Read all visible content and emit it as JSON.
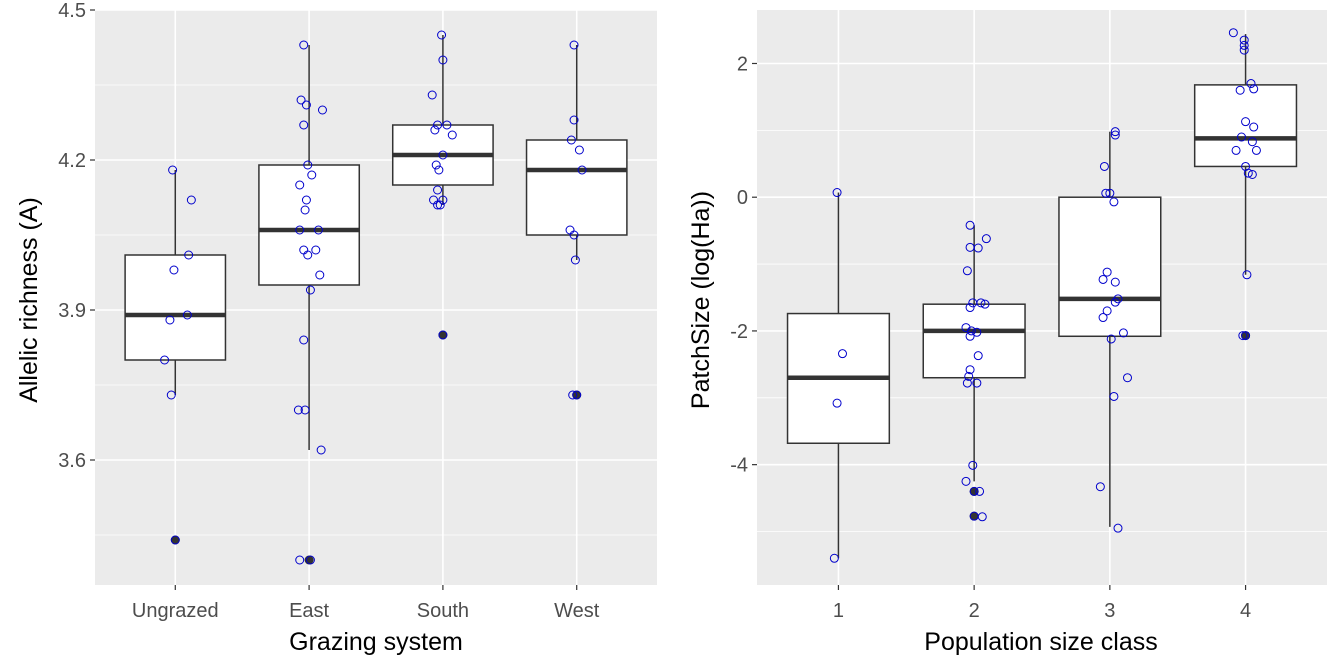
{
  "chart_data": [
    {
      "type": "boxplot",
      "xlabel": "Grazing system",
      "ylabel": "Allelic richness (A)",
      "categories": [
        "Ungrazed",
        "East",
        "South",
        "West"
      ],
      "ylim": [
        3.35,
        4.5
      ],
      "yticks": [
        3.6,
        3.9,
        4.2,
        4.5
      ],
      "grid": true,
      "boxes": [
        {
          "q1": 3.8,
          "median": 3.89,
          "q3": 4.01,
          "whisker_low": 3.73,
          "whisker_high": 4.18,
          "outliers": [
            3.44
          ]
        },
        {
          "q1": 3.95,
          "median": 4.06,
          "q3": 4.19,
          "whisker_low": 3.62,
          "whisker_high": 4.43,
          "outliers": [
            3.4
          ]
        },
        {
          "q1": 4.15,
          "median": 4.21,
          "q3": 4.27,
          "whisker_low": 4.11,
          "whisker_high": 4.45,
          "outliers": [
            3.85
          ]
        },
        {
          "q1": 4.05,
          "median": 4.18,
          "q3": 4.24,
          "whisker_low": 4.0,
          "whisker_high": 4.43,
          "outliers": [
            3.73
          ]
        }
      ],
      "points": [
        {
          "x": 0.98,
          "y": 4.18
        },
        {
          "x": 1.12,
          "y": 4.12
        },
        {
          "x": 1.1,
          "y": 4.01
        },
        {
          "x": 0.99,
          "y": 3.98
        },
        {
          "x": 1.09,
          "y": 3.89
        },
        {
          "x": 0.96,
          "y": 3.88
        },
        {
          "x": 0.92,
          "y": 3.8
        },
        {
          "x": 0.97,
          "y": 3.73
        },
        {
          "x": 1.0,
          "y": 3.44
        },
        {
          "x": 1.96,
          "y": 4.43
        },
        {
          "x": 1.94,
          "y": 4.32
        },
        {
          "x": 1.98,
          "y": 4.31
        },
        {
          "x": 2.1,
          "y": 4.3
        },
        {
          "x": 1.96,
          "y": 4.27
        },
        {
          "x": 1.99,
          "y": 4.19
        },
        {
          "x": 2.02,
          "y": 4.17
        },
        {
          "x": 1.93,
          "y": 4.15
        },
        {
          "x": 1.98,
          "y": 4.12
        },
        {
          "x": 1.97,
          "y": 4.1
        },
        {
          "x": 2.07,
          "y": 4.06
        },
        {
          "x": 1.93,
          "y": 4.06
        },
        {
          "x": 1.96,
          "y": 4.02
        },
        {
          "x": 2.05,
          "y": 4.02
        },
        {
          "x": 1.99,
          "y": 4.01
        },
        {
          "x": 2.08,
          "y": 3.97
        },
        {
          "x": 2.01,
          "y": 3.94
        },
        {
          "x": 1.96,
          "y": 3.84
        },
        {
          "x": 1.92,
          "y": 3.7
        },
        {
          "x": 1.97,
          "y": 3.7
        },
        {
          "x": 2.09,
          "y": 3.62
        },
        {
          "x": 1.93,
          "y": 3.4
        },
        {
          "x": 2.01,
          "y": 3.4
        },
        {
          "x": 2.99,
          "y": 4.45
        },
        {
          "x": 3.0,
          "y": 4.4
        },
        {
          "x": 2.92,
          "y": 4.33
        },
        {
          "x": 2.96,
          "y": 4.27
        },
        {
          "x": 3.03,
          "y": 4.27
        },
        {
          "x": 2.94,
          "y": 4.26
        },
        {
          "x": 3.07,
          "y": 4.25
        },
        {
          "x": 3.0,
          "y": 4.21
        },
        {
          "x": 2.95,
          "y": 4.19
        },
        {
          "x": 2.97,
          "y": 4.18
        },
        {
          "x": 2.96,
          "y": 4.14
        },
        {
          "x": 2.93,
          "y": 4.12
        },
        {
          "x": 2.98,
          "y": 4.11
        },
        {
          "x": 2.96,
          "y": 4.11
        },
        {
          "x": 3.0,
          "y": 4.12
        },
        {
          "x": 3.0,
          "y": 3.85
        },
        {
          "x": 3.98,
          "y": 4.43
        },
        {
          "x": 3.98,
          "y": 4.28
        },
        {
          "x": 3.96,
          "y": 4.24
        },
        {
          "x": 4.02,
          "y": 4.22
        },
        {
          "x": 4.04,
          "y": 4.18
        },
        {
          "x": 3.95,
          "y": 4.06
        },
        {
          "x": 3.98,
          "y": 4.05
        },
        {
          "x": 3.99,
          "y": 4.0
        },
        {
          "x": 3.97,
          "y": 3.73
        },
        {
          "x": 4.0,
          "y": 3.73
        }
      ]
    },
    {
      "type": "boxplot",
      "xlabel": "Population size class",
      "ylabel": "PatchSize (log(Ha))",
      "categories": [
        "1",
        "2",
        "3",
        "4"
      ],
      "ylim": [
        -5.8,
        2.8
      ],
      "yticks": [
        -4,
        -2,
        0,
        2
      ],
      "grid": true,
      "boxes": [
        {
          "q1": -3.68,
          "median": -2.7,
          "q3": -1.74,
          "whisker_low": -5.4,
          "whisker_high": 0.07,
          "outliers": []
        },
        {
          "q1": -2.7,
          "median": -2.0,
          "q3": -1.6,
          "whisker_low": -4.25,
          "whisker_high": -0.42,
          "outliers": [
            -4.4,
            -4.77
          ]
        },
        {
          "q1": -2.08,
          "median": -1.52,
          "q3": 0.0,
          "whisker_low": -4.93,
          "whisker_high": 0.98,
          "outliers": []
        },
        {
          "q1": 0.46,
          "median": 0.88,
          "q3": 1.68,
          "whisker_low": -1.16,
          "whisker_high": 2.44,
          "outliers": [
            -2.07
          ]
        }
      ],
      "points": [
        {
          "x": 0.99,
          "y": 0.07
        },
        {
          "x": 1.03,
          "y": -2.34
        },
        {
          "x": 0.99,
          "y": -3.08
        },
        {
          "x": 0.97,
          "y": -5.4
        },
        {
          "x": 1.97,
          "y": -0.42
        },
        {
          "x": 2.09,
          "y": -0.62
        },
        {
          "x": 1.97,
          "y": -0.75
        },
        {
          "x": 2.03,
          "y": -0.76
        },
        {
          "x": 1.95,
          "y": -1.1
        },
        {
          "x": 1.99,
          "y": -1.58
        },
        {
          "x": 2.05,
          "y": -1.58
        },
        {
          "x": 2.08,
          "y": -1.6
        },
        {
          "x": 1.97,
          "y": -1.65
        },
        {
          "x": 1.94,
          "y": -1.95
        },
        {
          "x": 1.98,
          "y": -2.0
        },
        {
          "x": 2.02,
          "y": -2.02
        },
        {
          "x": 1.97,
          "y": -2.08
        },
        {
          "x": 2.03,
          "y": -2.37
        },
        {
          "x": 1.97,
          "y": -2.58
        },
        {
          "x": 1.96,
          "y": -2.68
        },
        {
          "x": 2.02,
          "y": -2.78
        },
        {
          "x": 1.95,
          "y": -2.78
        },
        {
          "x": 1.99,
          "y": -4.01
        },
        {
          "x": 1.94,
          "y": -4.25
        },
        {
          "x": 2.04,
          "y": -4.4
        },
        {
          "x": 2.0,
          "y": -4.4
        },
        {
          "x": 2.06,
          "y": -4.78
        },
        {
          "x": 2.0,
          "y": -4.77
        },
        {
          "x": 3.04,
          "y": 0.98
        },
        {
          "x": 3.04,
          "y": 0.93
        },
        {
          "x": 2.96,
          "y": 0.46
        },
        {
          "x": 2.97,
          "y": 0.06
        },
        {
          "x": 3.0,
          "y": 0.06
        },
        {
          "x": 3.03,
          "y": -0.07
        },
        {
          "x": 2.98,
          "y": -1.12
        },
        {
          "x": 2.95,
          "y": -1.23
        },
        {
          "x": 3.04,
          "y": -1.27
        },
        {
          "x": 3.06,
          "y": -1.52
        },
        {
          "x": 3.04,
          "y": -1.57
        },
        {
          "x": 2.98,
          "y": -1.7
        },
        {
          "x": 2.95,
          "y": -1.8
        },
        {
          "x": 3.1,
          "y": -2.03
        },
        {
          "x": 3.01,
          "y": -2.12
        },
        {
          "x": 3.13,
          "y": -2.7
        },
        {
          "x": 3.03,
          "y": -2.98
        },
        {
          "x": 2.93,
          "y": -4.33
        },
        {
          "x": 3.06,
          "y": -4.95
        },
        {
          "x": 3.91,
          "y": 2.46
        },
        {
          "x": 3.99,
          "y": 2.35
        },
        {
          "x": 3.99,
          "y": 2.27
        },
        {
          "x": 3.99,
          "y": 2.2
        },
        {
          "x": 4.04,
          "y": 1.7
        },
        {
          "x": 4.06,
          "y": 1.62
        },
        {
          "x": 3.96,
          "y": 1.6
        },
        {
          "x": 4.0,
          "y": 1.13
        },
        {
          "x": 4.06,
          "y": 1.05
        },
        {
          "x": 3.97,
          "y": 0.9
        },
        {
          "x": 4.05,
          "y": 0.83
        },
        {
          "x": 3.93,
          "y": 0.7
        },
        {
          "x": 4.08,
          "y": 0.7
        },
        {
          "x": 4.0,
          "y": 0.46
        },
        {
          "x": 4.02,
          "y": 0.36
        },
        {
          "x": 4.05,
          "y": 0.34
        },
        {
          "x": 4.01,
          "y": -1.16
        },
        {
          "x": 3.98,
          "y": -2.07
        },
        {
          "x": 4.0,
          "y": -2.07
        }
      ]
    }
  ],
  "colors": {
    "panel_bg": "#ebebeb",
    "grid": "#ffffff",
    "box_fill": "#ffffff",
    "box_line": "#333333",
    "jitter_point": "#0000cc",
    "outlier": "#333333"
  }
}
